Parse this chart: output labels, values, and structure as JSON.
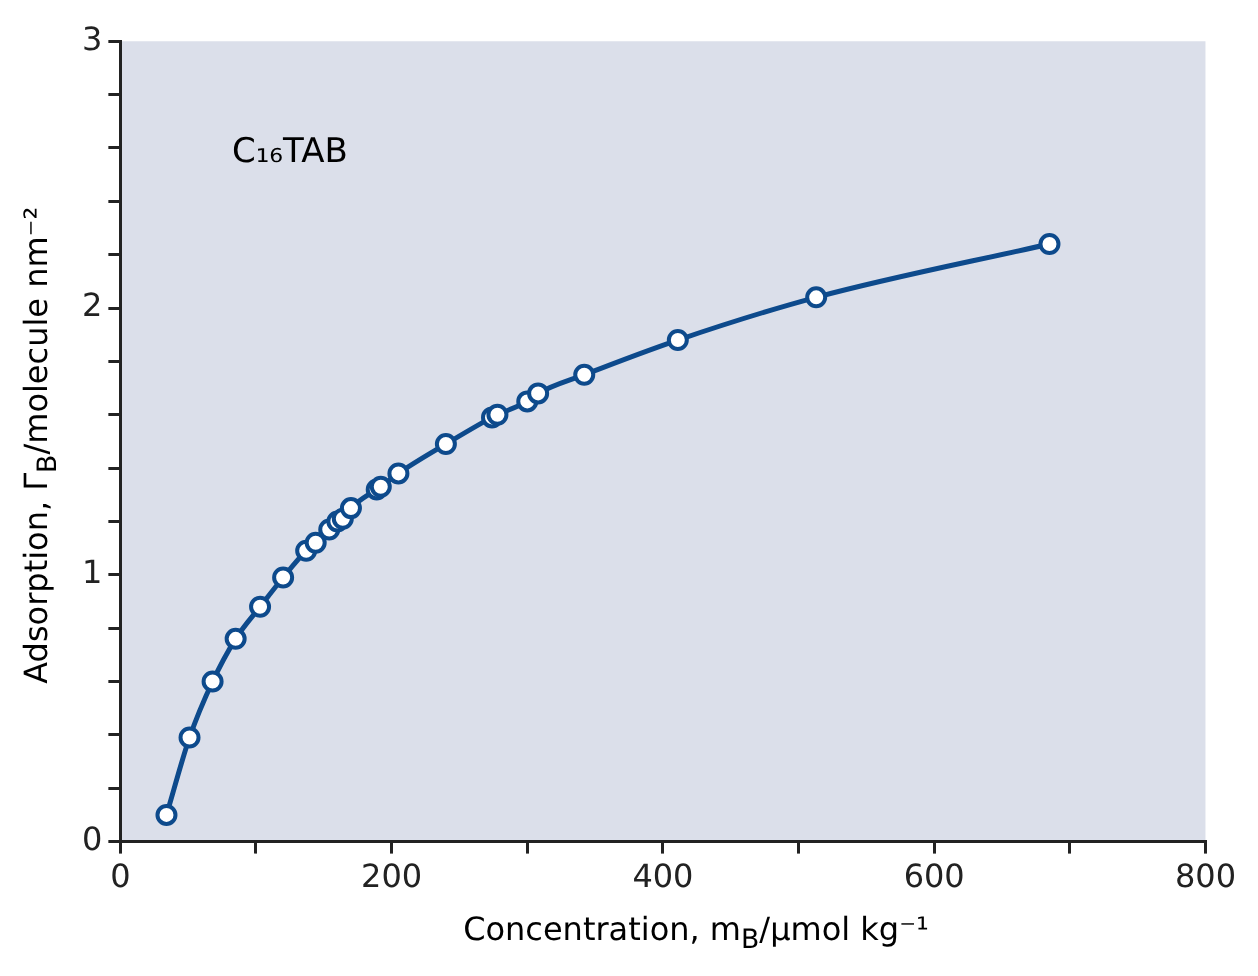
{
  "chart_data": {
    "type": "line",
    "xlabel": "Concentration, m$_{B}$/μmol kg⁻¹",
    "ylabel": "Adsorption, Γ$_{B}$/molecule nm⁻²",
    "annotations": [
      "C₁₆TAB"
    ],
    "x": [
      34,
      51,
      68,
      85,
      103,
      120,
      137,
      144,
      154,
      160,
      164,
      170,
      189,
      192,
      205,
      240,
      274,
      278,
      300,
      308,
      342,
      411,
      513,
      685
    ],
    "series": [
      {
        "color": "#0d4a8c",
        "values": [
          0.1,
          0.39,
          0.6,
          0.76,
          0.88,
          0.99,
          1.09,
          1.12,
          1.17,
          1.2,
          1.21,
          1.25,
          1.32,
          1.33,
          1.38,
          1.49,
          1.59,
          1.6,
          1.65,
          1.68,
          1.75,
          1.88,
          2.04,
          2.24
        ]
      }
    ],
    "xlim": [
      0,
      800
    ],
    "xticks": [
      0,
      {
        "value": 100,
        "label": null
      },
      200,
      {
        "value": 300,
        "label": null
      },
      400,
      {
        "value": 500,
        "label": null
      },
      600,
      {
        "value": 700,
        "label": null
      },
      800
    ],
    "ylim": [
      0,
      3
    ],
    "yticks": [
      0,
      {
        "value": 0.2,
        "label": null
      },
      {
        "value": 0.4,
        "label": null
      },
      {
        "value": 0.6,
        "label": null
      },
      {
        "value": 0.8,
        "label": null
      },
      1,
      {
        "value": 1.2,
        "label": null
      },
      {
        "value": 1.4,
        "label": null
      },
      {
        "value": 1.6,
        "label": null
      },
      {
        "value": 1.8,
        "label": null
      },
      2,
      {
        "value": 2.2,
        "label": null
      },
      {
        "value": 2.4,
        "label": null
      },
      {
        "value": 2.6,
        "label": null
      },
      {
        "value": 2.8,
        "label": null
      },
      3
    ],
    "grid": false,
    "legend": false,
    "marker": "circle",
    "line_style": "solid"
  }
}
